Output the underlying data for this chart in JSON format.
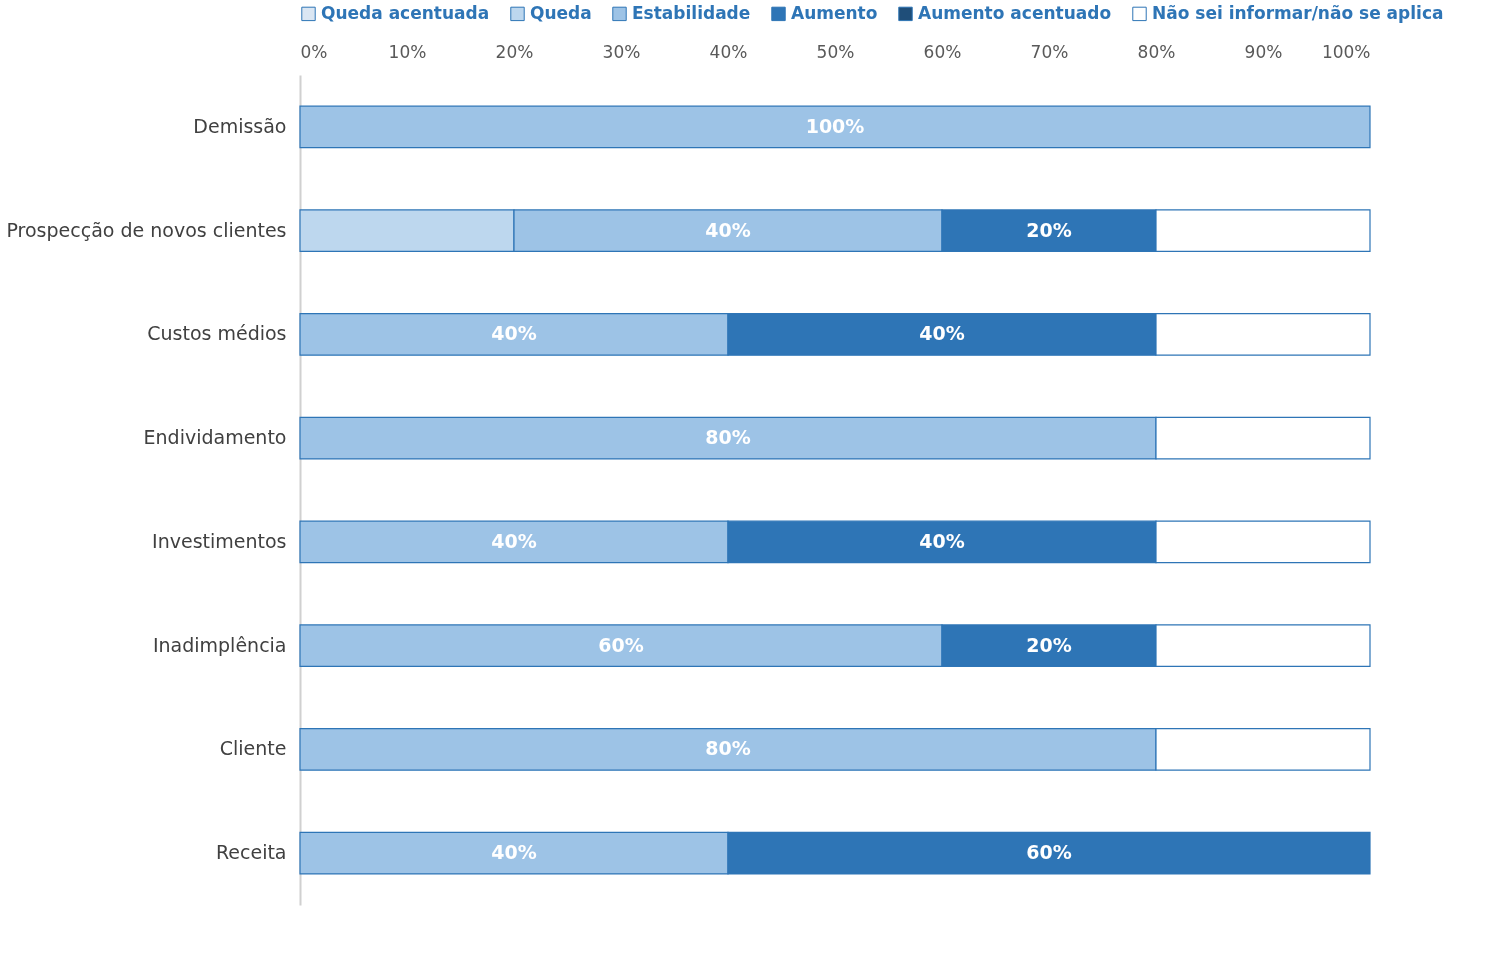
{
  "chart_data": {
    "type": "bar",
    "orientation": "horizontal",
    "stacked": true,
    "legend": "top",
    "categories": [
      "Demissão",
      "Prospecção de novos clientes",
      "Custos médios",
      "Endividamento",
      "Investimentos",
      "Inadimplência",
      "Cliente",
      "Receita"
    ],
    "xlim": [
      0,
      100
    ],
    "xticks": [
      {
        "value": 0,
        "label": "0%"
      },
      {
        "value": 10,
        "label": "10%"
      },
      {
        "value": 20,
        "label": "20%"
      },
      {
        "value": 30,
        "label": "30%"
      },
      {
        "value": 40,
        "label": "40%"
      },
      {
        "value": 50,
        "label": "50%"
      },
      {
        "value": 60,
        "label": "60%"
      },
      {
        "value": 70,
        "label": "70%"
      },
      {
        "value": 80,
        "label": "80%"
      },
      {
        "value": 90,
        "label": "90%"
      },
      {
        "value": 100,
        "label": "100%"
      }
    ],
    "grid": false,
    "series": [
      {
        "name": "Queda acentuada",
        "color": "#dae6f3",
        "values": [
          null,
          null,
          null,
          null,
          null,
          null,
          null,
          null
        ],
        "value_labels": [
          null,
          null,
          null,
          null,
          null,
          null,
          null,
          null
        ]
      },
      {
        "name": "Queda",
        "color": "#bdd7ee",
        "values": [
          null,
          20,
          null,
          null,
          null,
          null,
          null,
          null
        ],
        "value_labels": [
          null,
          null,
          null,
          null,
          null,
          null,
          null,
          null
        ]
      },
      {
        "name": "Estabilidade",
        "color": "#9dc3e6",
        "values": [
          100,
          40,
          40,
          80,
          40,
          60,
          80,
          40
        ],
        "value_labels": [
          "100%",
          "40%",
          "40%",
          "80%",
          "40%",
          "60%",
          "80%",
          "40%"
        ]
      },
      {
        "name": "Aumento",
        "color": "#2e75b6",
        "values": [
          null,
          20,
          40,
          null,
          40,
          20,
          null,
          60
        ],
        "value_labels": [
          null,
          "20%",
          "40%",
          null,
          "40%",
          "20%",
          null,
          "60%"
        ]
      },
      {
        "name": "Aumento acentuado",
        "color": "#1f4e79",
        "values": [
          null,
          null,
          null,
          null,
          null,
          null,
          null,
          null
        ],
        "value_labels": [
          null,
          null,
          null,
          null,
          null,
          null,
          null,
          null
        ]
      },
      {
        "name": "Não sei informar/não se aplica",
        "color": "#ffffff",
        "values": [
          null,
          20,
          20,
          20,
          20,
          20,
          20,
          null
        ],
        "value_labels": [
          null,
          null,
          null,
          null,
          null,
          null,
          null,
          null
        ]
      }
    ]
  }
}
